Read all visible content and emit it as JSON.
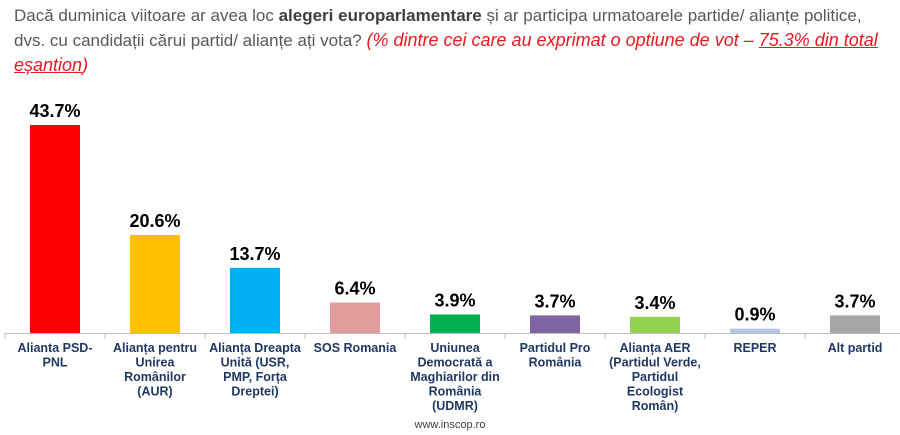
{
  "question": {
    "part1": "Dacă duminica viitoare ar avea loc ",
    "bold": "alegeri europarlamentare",
    "part2": " și ar participa urmatoarele partide/ alianțe politice, dvs. cu candidații cărui partid/ alianțe ați vota?",
    "note_a": "(% dintre cei care au exprimat o optiune de vot – ",
    "note_b": "75.3% din total eșantion",
    "note_c": ")"
  },
  "source": "www.inscop.ro",
  "chart_data": {
    "type": "bar",
    "categories": [
      [
        "Alianta PSD-",
        "PNL"
      ],
      [
        "Alianța pentru",
        "Unirea",
        "Românilor",
        "(AUR)"
      ],
      [
        "Alianța Dreapta",
        "Unită (USR,",
        "PMP, Forța",
        "Dreptei)"
      ],
      [
        "SOS Romania"
      ],
      [
        "Uniunea",
        "Democrată a",
        "Maghiarilor din",
        "România",
        "(UDMR)"
      ],
      [
        "Partidul Pro",
        "România"
      ],
      [
        "Alianța AER",
        "(Partidul Verde,",
        "Partidul",
        "Ecologist",
        "Român)"
      ],
      [
        "REPER"
      ],
      [
        "Alt partid"
      ]
    ],
    "values": [
      43.7,
      20.6,
      13.7,
      6.4,
      3.9,
      3.7,
      3.4,
      0.9,
      3.7
    ],
    "value_labels": [
      "43.7%",
      "20.6%",
      "13.7%",
      "6.4%",
      "3.9%",
      "3.7%",
      "3.4%",
      "0.9%",
      "3.7%"
    ],
    "colors": [
      "#ff0000",
      "#ffc000",
      "#00b0f0",
      "#e39c9c",
      "#00b050",
      "#7f63a3",
      "#92d050",
      "#b4c6e7",
      "#a6a6a6"
    ],
    "ylim": [
      0,
      45
    ],
    "grid": false,
    "legend": "none"
  }
}
